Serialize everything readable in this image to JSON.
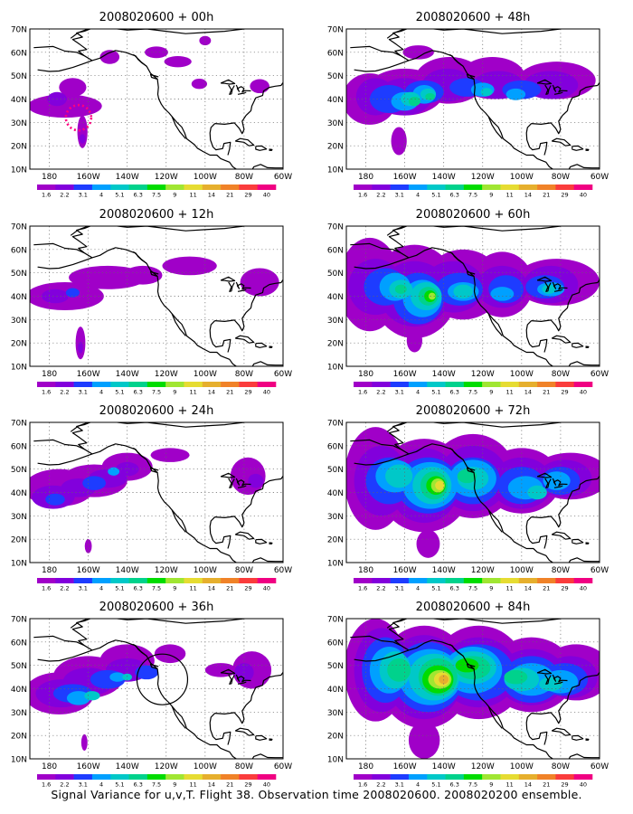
{
  "colorbar": {
    "labels": [
      "1.6",
      "2.2",
      "3.1",
      "4",
      "5.1",
      "6.3",
      "7.5",
      "9",
      "11",
      "14",
      "21",
      "29",
      "40"
    ],
    "colors": [
      "#a000c8",
      "#8200dc",
      "#1e3cff",
      "#00a0ff",
      "#00c8c8",
      "#00d28c",
      "#00dc00",
      "#a0e632",
      "#e6dc32",
      "#e6af2d",
      "#f08228",
      "#fa3c3c",
      "#f00082"
    ]
  },
  "axes": {
    "lat_labels": [
      "70N",
      "60N",
      "50N",
      "40N",
      "30N",
      "20N",
      "10N"
    ],
    "lon_labels": [
      "180",
      "160W",
      "140W",
      "120W",
      "100W",
      "80W",
      "60W"
    ],
    "lat_range": [
      10,
      70
    ],
    "lon_range": [
      -190,
      -60
    ],
    "grid": "dotted"
  },
  "panels": [
    {
      "title": "2008020600 + 00h",
      "lead": 0
    },
    {
      "title": "2008020600 + 48h",
      "lead": 48
    },
    {
      "title": "2008020600 + 12h",
      "lead": 12
    },
    {
      "title": "2008020600 + 60h",
      "lead": 60
    },
    {
      "title": "2008020600 + 24h",
      "lead": 24
    },
    {
      "title": "2008020600 + 72h",
      "lead": 72
    },
    {
      "title": "2008020600 + 36h",
      "lead": 36
    },
    {
      "title": "2008020600 + 84h",
      "lead": 84
    }
  ],
  "caption": "Signal Variance for u,v,T. Flight 38. Observation time 2008020600. 2008020200 ensemble."
}
